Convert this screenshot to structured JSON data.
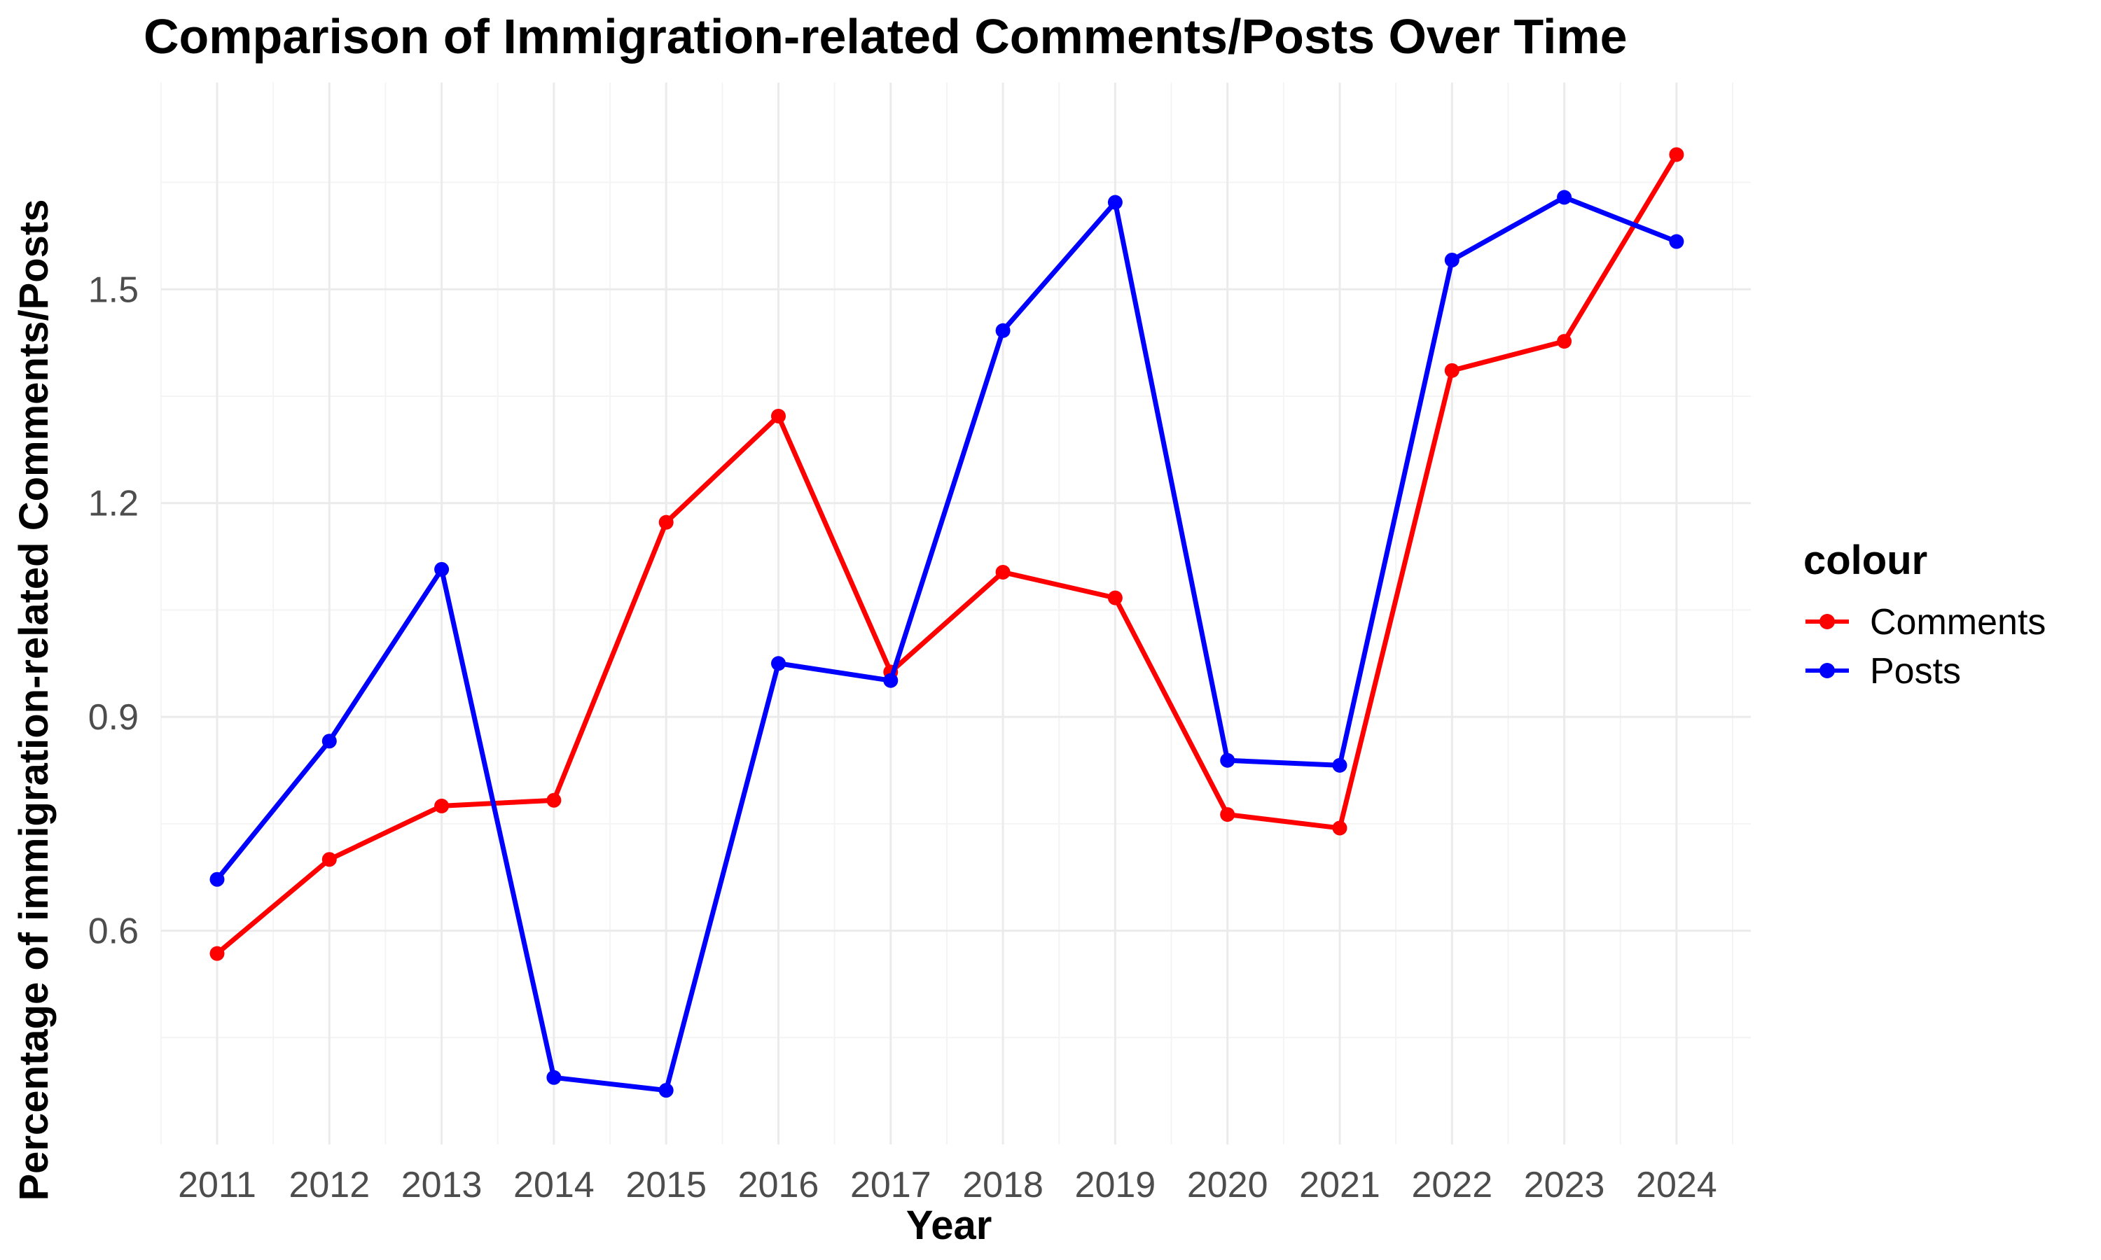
{
  "chart_data": {
    "type": "line",
    "title": "Comparison of Immigration-related Comments/Posts Over Time",
    "xlabel": "Year",
    "ylabel": "Percentage of immigration-related Comments/Posts",
    "categories": [
      "2011",
      "2012",
      "2013",
      "2014",
      "2015",
      "2016",
      "2017",
      "2018",
      "2019",
      "2020",
      "2021",
      "2022",
      "2023",
      "2024"
    ],
    "y_ticks": [
      0.6,
      0.9,
      1.2,
      1.5
    ],
    "y_tick_labels": [
      "0.6",
      "0.9",
      "1.2",
      "1.5"
    ],
    "ylim": [
      0.3,
      1.79
    ],
    "grid": true,
    "legend": {
      "title": "colour",
      "position": "right"
    },
    "series": [
      {
        "name": "Comments",
        "color": "#ff0000",
        "values": [
          0.568,
          0.7,
          0.775,
          0.783,
          1.173,
          1.322,
          0.963,
          1.103,
          1.067,
          0.763,
          0.744,
          1.386,
          1.427,
          1.689
        ]
      },
      {
        "name": "Posts",
        "color": "#0000ff",
        "values": [
          0.672,
          0.866,
          1.107,
          0.394,
          0.376,
          0.975,
          0.951,
          1.442,
          1.622,
          0.839,
          0.832,
          1.541,
          1.629,
          1.567
        ]
      }
    ]
  }
}
